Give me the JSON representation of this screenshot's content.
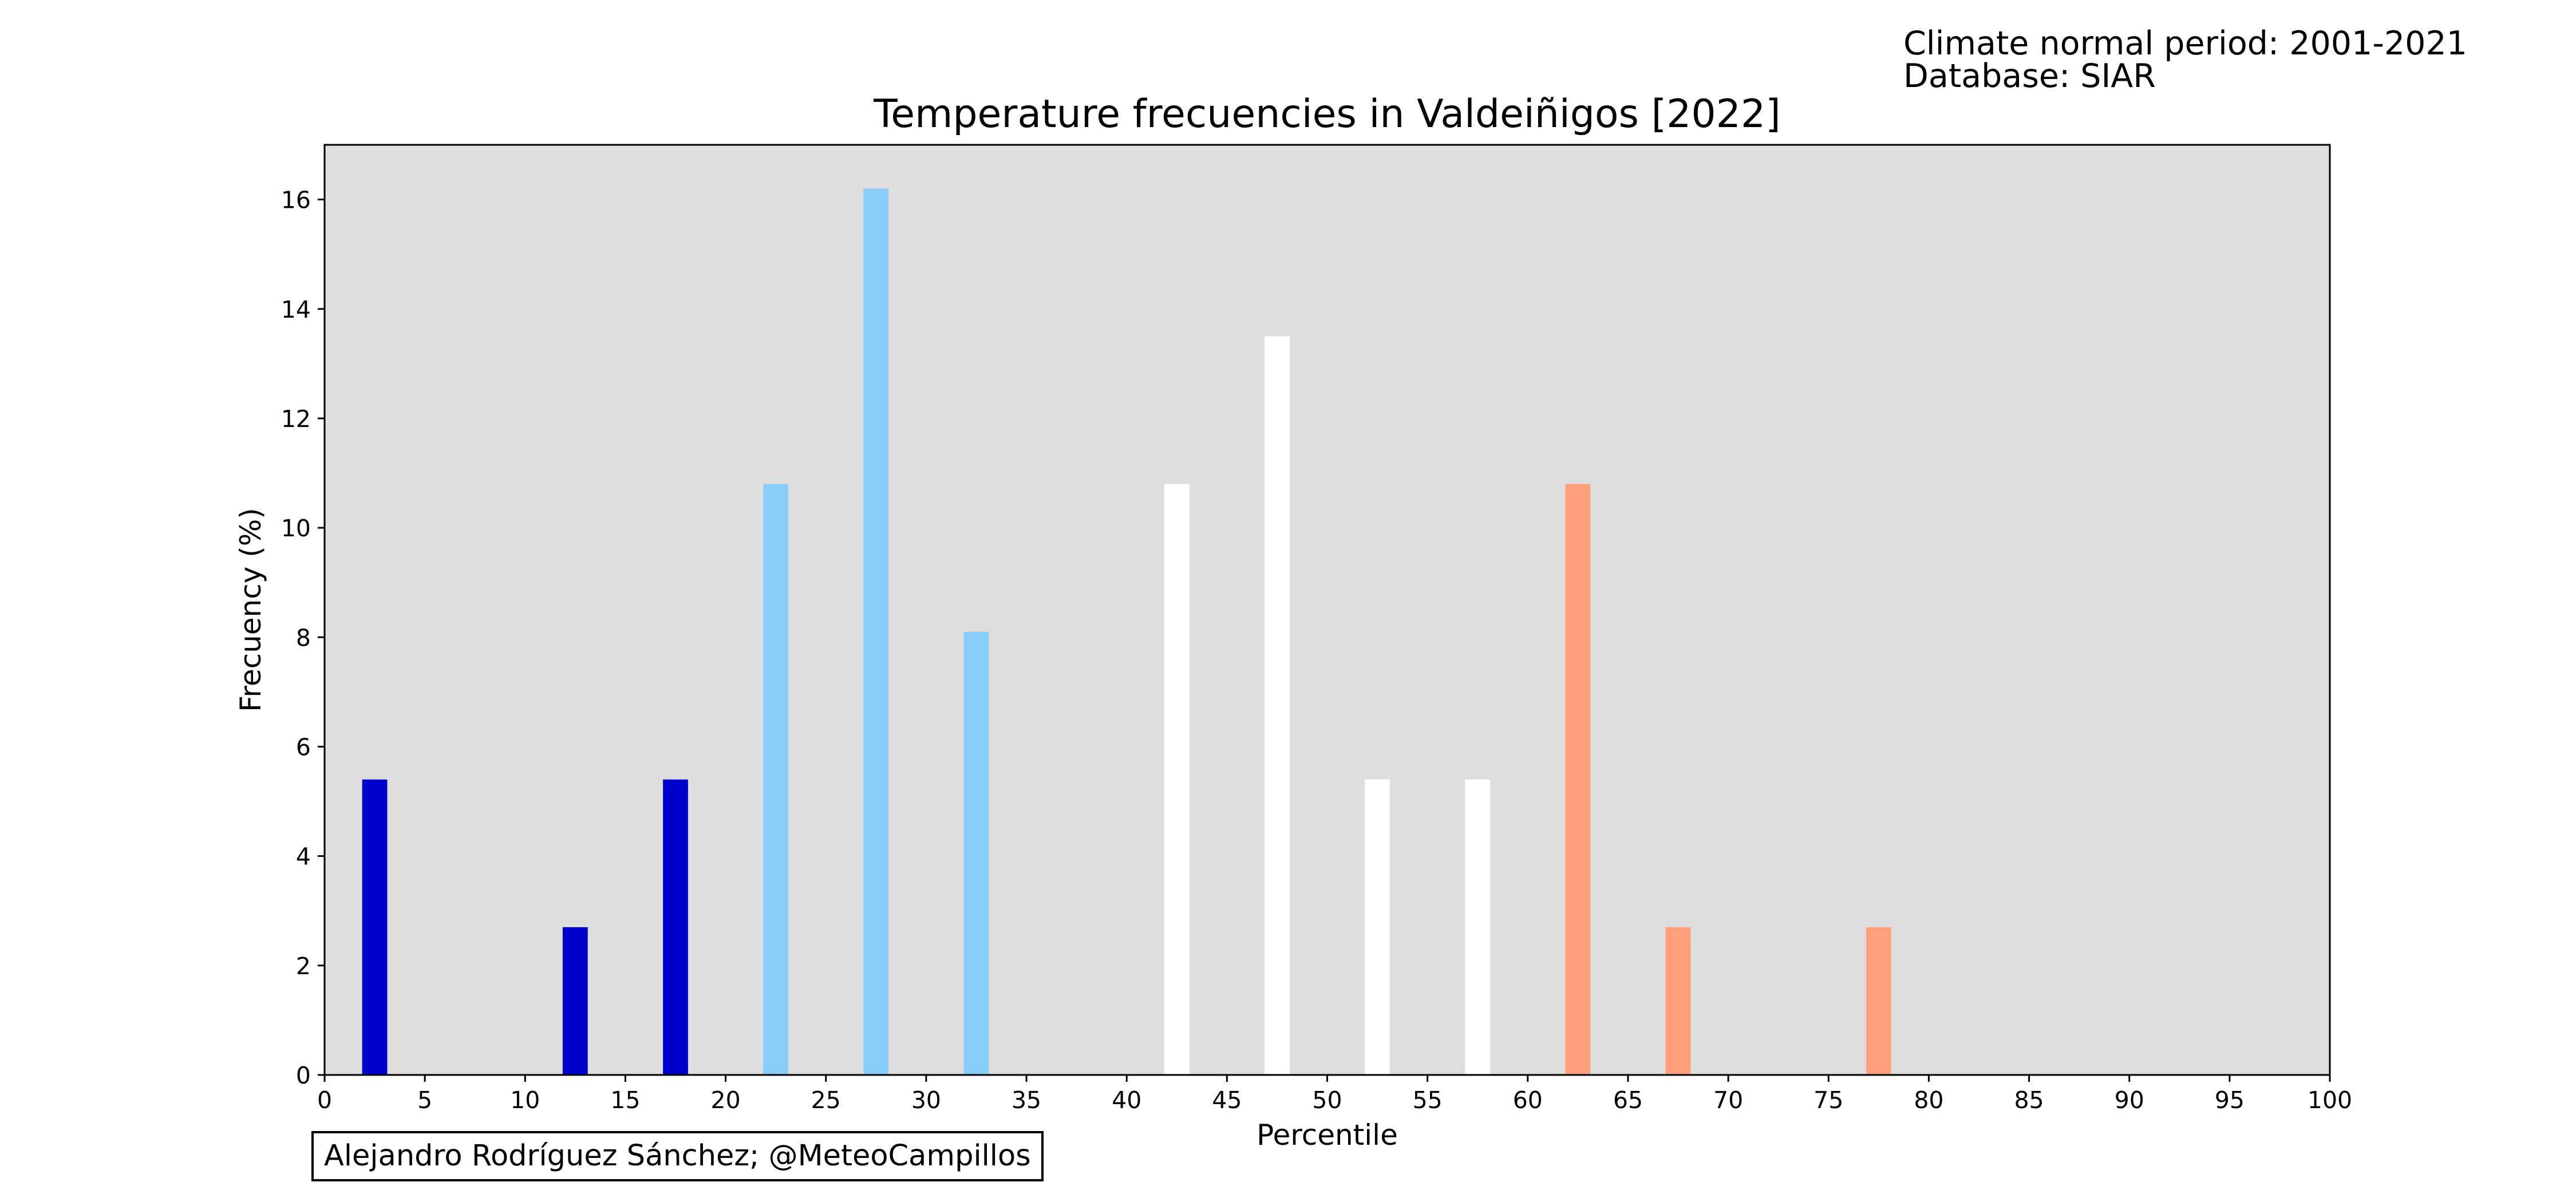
{
  "header": {
    "normal_period": "Climate normal period: 2001-2021",
    "database": "Database: SIAR"
  },
  "credit": "Alejandro Rodríguez Sánchez; @MeteoCampillos",
  "chart_data": {
    "type": "bar",
    "title": "Temperature frecuencies in Valdeiñigos [2022]",
    "xlabel": "Percentile",
    "ylabel": "Frecuency (%)",
    "xlim": [
      0,
      100
    ],
    "ylim": [
      0,
      17
    ],
    "xticks": [
      0,
      5,
      10,
      15,
      20,
      25,
      30,
      35,
      40,
      45,
      50,
      55,
      60,
      65,
      70,
      75,
      80,
      85,
      90,
      95,
      100
    ],
    "yticks": [
      0,
      2,
      4,
      6,
      8,
      10,
      12,
      14,
      16
    ],
    "bar_width": 1.25,
    "grid": false,
    "background": "#dedede",
    "x": [
      2.5,
      7.5,
      12.5,
      17.5,
      22.5,
      27.5,
      32.5,
      37.5,
      42.5,
      47.5,
      52.5,
      57.5,
      62.5,
      67.5,
      72.5,
      77.5,
      82.5,
      87.5,
      92.5,
      97.5
    ],
    "values": [
      5.4,
      0,
      2.7,
      5.4,
      10.8,
      16.2,
      8.1,
      0,
      10.8,
      13.5,
      5.4,
      5.4,
      10.8,
      2.7,
      0,
      2.7,
      0,
      0,
      0,
      0
    ],
    "colors": [
      "#0000cd",
      "#0000cd",
      "#0000cd",
      "#0000cd",
      "#87cefa",
      "#87cefa",
      "#87cefa",
      "#ffffff",
      "#ffffff",
      "#ffffff",
      "#ffffff",
      "#ffffff",
      "#ffa07a",
      "#ffa07a",
      "#ffa07a",
      "#ffa07a",
      "#ff6347",
      "#ff6347",
      "#dc143c",
      "#dc143c"
    ]
  }
}
